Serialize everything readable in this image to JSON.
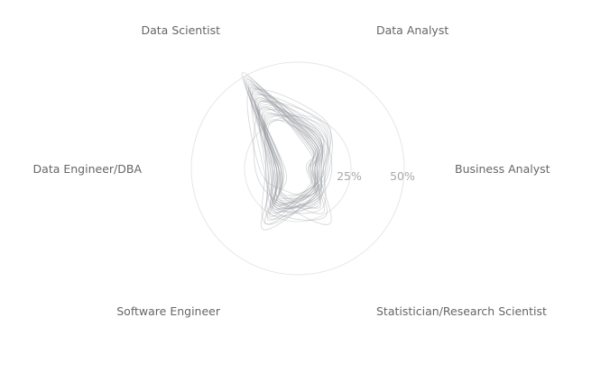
{
  "chart_data": {
    "type": "radar",
    "axes": [
      "Data Scientist",
      "Data Analyst",
      "Business Analyst",
      "Statistician/Research Scientist",
      "Software Engineer",
      "Data Engineer/DBA"
    ],
    "radial_ticks": [
      "25%",
      "50%"
    ],
    "radial_tick_values": [
      25,
      50
    ],
    "rmax": 50,
    "grid": true,
    "line_color": "#9a9ea3",
    "series": [
      {
        "values": [
          52,
          12,
          6,
          11,
          20,
          8
        ]
      },
      {
        "values": [
          50,
          14,
          7,
          13,
          18,
          9
        ]
      },
      {
        "values": [
          48,
          15,
          8,
          12,
          22,
          10
        ]
      },
      {
        "values": [
          45,
          17,
          9,
          14,
          19,
          11
        ]
      },
      {
        "values": [
          47,
          13,
          5,
          16,
          21,
          7
        ]
      },
      {
        "values": [
          43,
          18,
          10,
          12,
          17,
          12
        ]
      },
      {
        "values": [
          40,
          20,
          9,
          15,
          23,
          9
        ]
      },
      {
        "values": [
          38,
          16,
          11,
          17,
          20,
          13
        ]
      },
      {
        "values": [
          44,
          11,
          6,
          24,
          15,
          8
        ]
      },
      {
        "values": [
          36,
          22,
          12,
          14,
          18,
          10
        ]
      },
      {
        "values": [
          34,
          19,
          8,
          18,
          25,
          14
        ]
      },
      {
        "values": [
          42,
          14,
          7,
          13,
          30,
          9
        ]
      },
      {
        "values": [
          39,
          24,
          13,
          11,
          16,
          8
        ]
      },
      {
        "values": [
          33,
          17,
          10,
          19,
          22,
          15
        ]
      },
      {
        "values": [
          46,
          12,
          4,
          21,
          14,
          6
        ]
      },
      {
        "values": [
          31,
          21,
          14,
          13,
          24,
          11
        ]
      },
      {
        "values": [
          37,
          15,
          9,
          30,
          17,
          10
        ]
      },
      {
        "values": [
          29,
          18,
          11,
          16,
          27,
          13
        ]
      },
      {
        "values": [
          41,
          13,
          8,
          12,
          19,
          16
        ]
      },
      {
        "values": [
          35,
          25,
          15,
          14,
          15,
          9
        ]
      },
      {
        "values": [
          28,
          20,
          12,
          22,
          21,
          12
        ]
      },
      {
        "values": [
          49,
          10,
          5,
          10,
          26,
          7
        ]
      },
      {
        "values": [
          32,
          16,
          9,
          15,
          33,
          11
        ]
      },
      {
        "values": [
          27,
          23,
          13,
          18,
          20,
          14
        ]
      },
      {
        "values": [
          44,
          15,
          8,
          14,
          12,
          18
        ]
      },
      {
        "values": [
          30,
          14,
          7,
          26,
          23,
          10
        ]
      },
      {
        "values": [
          36,
          18,
          10,
          12,
          28,
          8
        ]
      },
      {
        "values": [
          25,
          19,
          16,
          17,
          19,
          12
        ]
      },
      {
        "values": [
          42,
          26,
          12,
          11,
          14,
          9
        ]
      },
      {
        "values": [
          33,
          12,
          6,
          20,
          18,
          20
        ]
      },
      {
        "values": [
          38,
          17,
          11,
          16,
          21,
          10
        ]
      },
      {
        "values": [
          26,
          15,
          8,
          15,
          30,
          15
        ]
      }
    ]
  }
}
